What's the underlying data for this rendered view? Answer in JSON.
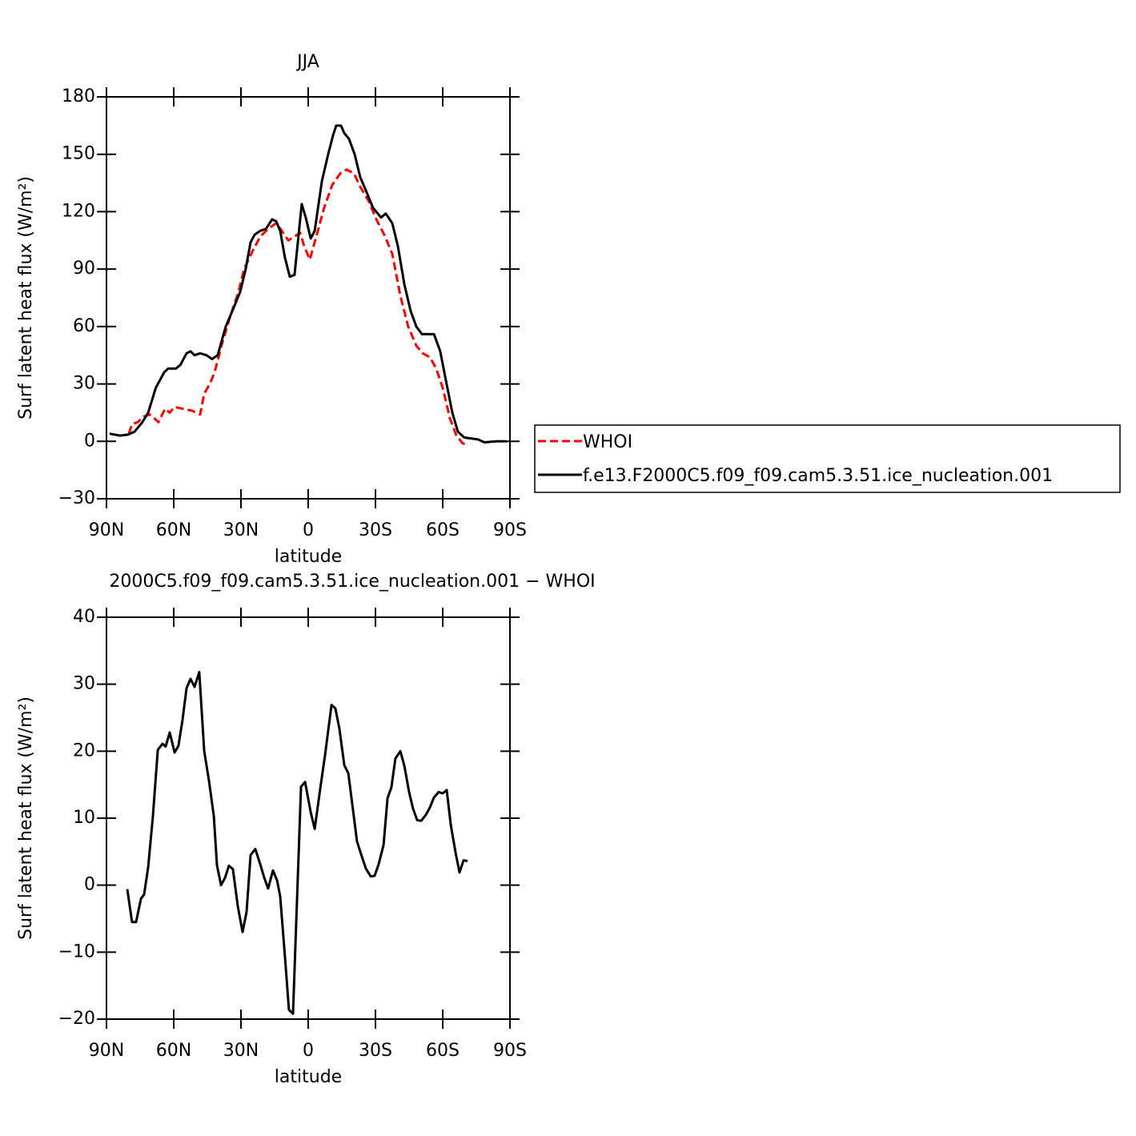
{
  "chart_data": [
    {
      "type": "line",
      "title": "JJA",
      "xlabel": "latitude",
      "ylabel": "Surf latent heat flux (W/m²)",
      "xlim": [
        90,
        -90
      ],
      "xticks": [
        {
          "value": 90,
          "label": "90N"
        },
        {
          "value": 60,
          "label": "60N"
        },
        {
          "value": 30,
          "label": "30N"
        },
        0,
        {
          "value": -30,
          "label": "30S"
        },
        {
          "value": -60,
          "label": "60S"
        },
        {
          "value": -90,
          "label": "90S"
        }
      ],
      "ylim": [
        -30,
        180
      ],
      "yticks": [
        {
          "value": -30,
          "label": "−30"
        },
        0,
        30,
        60,
        90,
        120,
        150,
        180
      ],
      "legend": "right",
      "series": [
        {
          "name": "WHOI",
          "color": "#ff0000",
          "dashed": true,
          "x": [
            80,
            78.6,
            76.1,
            73.2,
            70.7,
            68.6,
            66.8,
            63.9,
            61.8,
            59.6,
            56.1,
            51.8,
            48.2,
            46.4,
            43.9,
            41.8,
            38.2,
            34.6,
            31.1,
            28.6,
            25,
            21.4,
            17.9,
            14.3,
            11.8,
            8.9,
            6.1,
            3.6,
            1.8,
            -0.7,
            -3.6,
            -7.1,
            -10.7,
            -14.3,
            -17.1,
            -20.4,
            -23.2,
            -26.8,
            -30.4,
            -33.9,
            -37.5,
            -41.1,
            -44.6,
            -48.2,
            -51.1,
            -54.3,
            -57.1,
            -60,
            -63.2,
            -66.1,
            -68.9,
            -71.4
          ],
          "values": [
            4,
            9,
            10,
            13,
            14,
            12,
            10,
            17,
            15,
            18,
            17,
            16,
            14,
            25,
            30,
            36,
            52,
            66,
            78,
            90,
            99,
            107,
            111,
            114,
            110,
            105,
            107,
            109,
            102,
            95,
            107,
            122,
            134,
            140,
            142,
            140,
            133,
            126,
            116,
            108,
            98,
            76,
            60,
            50,
            46,
            44,
            38,
            28,
            12,
            3,
            -1,
            -2
          ]
        },
        {
          "name": "f.e13.F2000C5.f09_f09.cam5.3.51.ice_nucleation.001",
          "color": "#000000",
          "dashed": false,
          "x": [
            88.6,
            84,
            80.4,
            77.5,
            74,
            71.4,
            68,
            64.3,
            62.5,
            59,
            57,
            54.3,
            52.5,
            50.7,
            48.2,
            45.4,
            42.9,
            40.4,
            36.8,
            33.9,
            30.4,
            27.9,
            25.7,
            23.9,
            21.4,
            18.9,
            16.1,
            14.3,
            12.5,
            10.4,
            8.2,
            6.1,
            2.9,
            1.1,
            -1.1,
            -2.9,
            -6.1,
            -8.9,
            -11.1,
            -12.5,
            -14.6,
            -16.1,
            -18.2,
            -20.7,
            -23.2,
            -26.1,
            -28.9,
            -32.5,
            -34.6,
            -37.5,
            -40,
            -42.9,
            -45.7,
            -48.2,
            -50.7,
            -53.6,
            -56.1,
            -58.9,
            -61.4,
            -64.3,
            -66.8,
            -69.6,
            -75.7,
            -78.6,
            -84,
            -88.6
          ],
          "values": [
            4,
            3,
            3.5,
            5,
            10,
            15,
            28,
            36,
            38,
            38,
            40,
            46,
            47,
            45,
            46,
            45,
            43,
            45,
            60,
            68,
            78,
            90,
            104,
            108,
            110,
            111,
            116,
            115,
            110,
            96,
            86,
            87,
            124,
            117,
            106,
            110,
            136,
            150,
            160,
            165,
            165,
            161,
            158,
            150,
            138,
            130,
            122,
            117,
            119,
            114,
            102,
            82,
            68,
            60,
            56,
            56,
            56,
            47,
            32,
            15,
            5,
            2,
            1,
            -0.5,
            0,
            0
          ]
        }
      ]
    },
    {
      "type": "line",
      "title": "2000C5.f09_f09.cam5.3.51.ice_nucleation.001 − WHOI",
      "xlabel": "latitude",
      "ylabel": "Surf latent heat flux (W/m²)",
      "xlim": [
        90,
        -90
      ],
      "xticks": [
        {
          "value": 90,
          "label": "90N"
        },
        {
          "value": 60,
          "label": "60N"
        },
        {
          "value": 30,
          "label": "30N"
        },
        0,
        {
          "value": -30,
          "label": "30S"
        },
        {
          "value": -60,
          "label": "60S"
        },
        {
          "value": -90,
          "label": "90S"
        }
      ],
      "ylim": [
        -20,
        40
      ],
      "yticks": [
        {
          "value": -20,
          "label": "−20"
        },
        {
          "value": -10,
          "label": "−10"
        },
        0,
        10,
        20,
        30,
        40
      ],
      "series": [
        {
          "color": "#000000",
          "dashed": false,
          "x": [
            80.7,
            78.6,
            76.8,
            74.6,
            73.2,
            71.4,
            69.3,
            67.1,
            65,
            63.6,
            61.8,
            59.6,
            57.9,
            56.1,
            54.3,
            52.5,
            50.7,
            48.6,
            46.4,
            44.3,
            42.1,
            40.7,
            38.9,
            37.1,
            35.4,
            33.6,
            31.4,
            29.3,
            27.5,
            25.7,
            23.6,
            21.4,
            19.6,
            17.9,
            15.7,
            13.9,
            12.5,
            10.4,
            8.6,
            6.8,
            3.2,
            1.4,
            -1.1,
            -2.9,
            -5.4,
            -7.5,
            -10.4,
            -12.1,
            -13.9,
            -16.1,
            -17.9,
            -19.6,
            -21.8,
            -23.9,
            -25.7,
            -27.9,
            -29.6,
            -31.4,
            -33.6,
            -35.4,
            -37.1,
            -38.9,
            -41.1,
            -42.9,
            -45,
            -46.8,
            -48.6,
            -50.4,
            -52.5,
            -54.3,
            -56.1,
            -58.2,
            -60,
            -61.8,
            -63.6,
            -65.7,
            -67.5,
            -69.3,
            -71.1
          ],
          "values": [
            -0.6,
            -5.5,
            -5.5,
            -2,
            -1.4,
            2.7,
            10.3,
            20.2,
            21.1,
            20.7,
            22.8,
            19.8,
            20.8,
            24.6,
            29.4,
            30.8,
            29.6,
            31.8,
            20,
            15.6,
            10.3,
            3,
            0,
            1.1,
            2.9,
            2.4,
            -3.2,
            -7,
            -4,
            4.5,
            5.4,
            3.1,
            1.1,
            -0.5,
            2.2,
            0.7,
            -1.7,
            -10.6,
            -18.6,
            -19.2,
            14.7,
            15.4,
            10.9,
            8.4,
            14.5,
            19.4,
            26.9,
            26.4,
            23.4,
            17.9,
            16.7,
            12.2,
            6.5,
            4.3,
            2.5,
            1.3,
            1.4,
            3.1,
            6,
            13,
            14.6,
            18.9,
            20,
            17.8,
            13.9,
            11.4,
            9.7,
            9.6,
            10.5,
            11.6,
            13.1,
            13.9,
            13.7,
            14.2,
            9,
            4.9,
            1.9,
            3.7,
            3.6
          ]
        }
      ]
    }
  ]
}
